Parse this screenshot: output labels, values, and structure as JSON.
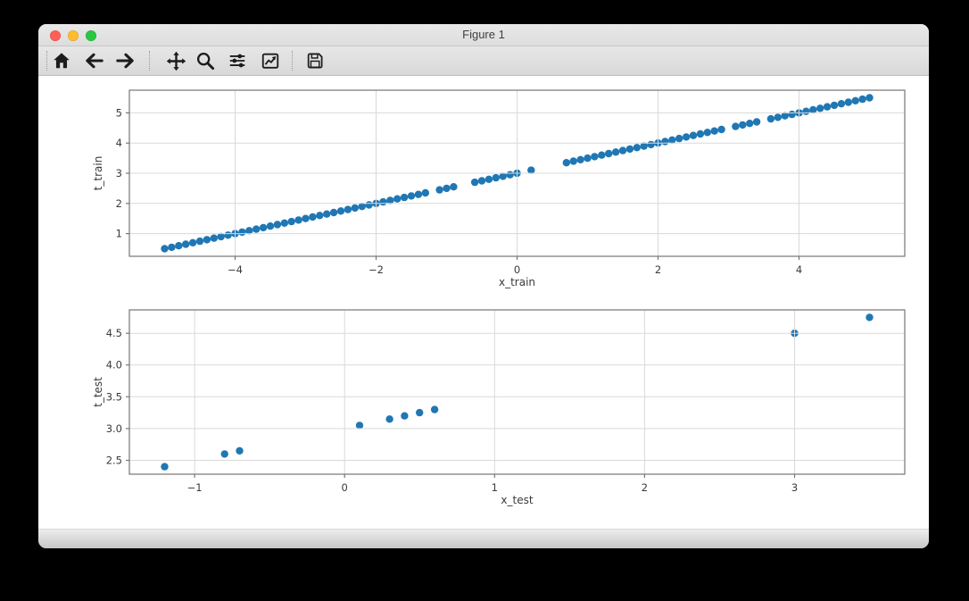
{
  "window": {
    "title": "Figure 1"
  },
  "toolbar": {
    "buttons": [
      {
        "id": "home",
        "icon": "home-icon"
      },
      {
        "id": "back",
        "icon": "back-arrow-icon"
      },
      {
        "id": "forward",
        "icon": "forward-arrow-icon"
      },
      {
        "id": "pan",
        "icon": "pan-move-icon"
      },
      {
        "id": "zoom",
        "icon": "zoom-magnifier-icon"
      },
      {
        "id": "configure-subplots",
        "icon": "sliders-icon"
      },
      {
        "id": "edit-axes",
        "icon": "line-chart-icon"
      },
      {
        "id": "save",
        "icon": "save-floppy-icon"
      }
    ]
  },
  "colors": {
    "marker": "#1f77b4",
    "grid": "#d9d9d9",
    "spine": "#767676",
    "text": "#3a3a3a",
    "traffic_close": "#ff5f57",
    "traffic_minimize": "#febc2e",
    "traffic_zoom": "#28c840"
  },
  "chart_data": [
    {
      "type": "scatter",
      "title": "",
      "xlabel": "x_train",
      "ylabel": "t_train",
      "x": [
        -5.0,
        -4.9,
        -4.8,
        -4.7,
        -4.6,
        -4.5,
        -4.4,
        -4.3,
        -4.2,
        -4.1,
        -4.0,
        -3.9,
        -3.8,
        -3.7,
        -3.6,
        -3.5,
        -3.4,
        -3.3,
        -3.2,
        -3.1,
        -3.0,
        -2.9,
        -2.8,
        -2.7,
        -2.6,
        -2.5,
        -2.4,
        -2.3,
        -2.2,
        -2.1,
        -2.0,
        -1.9,
        -1.8,
        -1.7,
        -1.6,
        -1.5,
        -1.4,
        -1.3,
        -1.1,
        -1.0,
        -0.9,
        -0.6,
        -0.5,
        -0.4,
        -0.3,
        -0.2,
        -0.1,
        0.0,
        0.2,
        0.7,
        0.8,
        0.9,
        1.0,
        1.1,
        1.2,
        1.3,
        1.4,
        1.5,
        1.6,
        1.7,
        1.8,
        1.9,
        2.0,
        2.1,
        2.2,
        2.3,
        2.4,
        2.5,
        2.6,
        2.7,
        2.8,
        2.9,
        3.1,
        3.2,
        3.3,
        3.4,
        3.6,
        3.7,
        3.8,
        3.9,
        4.0,
        4.1,
        4.2,
        4.3,
        4.4,
        4.5,
        4.6,
        4.7,
        4.8,
        4.9,
        5.0
      ],
      "y": [
        0.5,
        0.55,
        0.6,
        0.65,
        0.7,
        0.75,
        0.8,
        0.85,
        0.9,
        0.95,
        1.0,
        1.05,
        1.1,
        1.15,
        1.2,
        1.25,
        1.3,
        1.35,
        1.4,
        1.45,
        1.5,
        1.55,
        1.6,
        1.65,
        1.7,
        1.75,
        1.8,
        1.85,
        1.9,
        1.95,
        2.0,
        2.05,
        2.1,
        2.15,
        2.2,
        2.25,
        2.3,
        2.35,
        2.45,
        2.5,
        2.55,
        2.7,
        2.75,
        2.8,
        2.85,
        2.9,
        2.95,
        3.0,
        3.1,
        3.35,
        3.4,
        3.45,
        3.5,
        3.55,
        3.6,
        3.65,
        3.7,
        3.75,
        3.8,
        3.85,
        3.9,
        3.95,
        4.0,
        4.05,
        4.1,
        4.15,
        4.2,
        4.25,
        4.3,
        4.35,
        4.4,
        4.45,
        4.55,
        4.6,
        4.65,
        4.7,
        4.8,
        4.85,
        4.9,
        4.95,
        5.0,
        5.05,
        5.1,
        5.15,
        5.2,
        5.25,
        5.3,
        5.35,
        5.4,
        5.45,
        5.5
      ],
      "xlim": [
        -5.5,
        5.5
      ],
      "ylim": [
        0.25,
        5.75
      ],
      "xticks": [
        -4,
        -2,
        0,
        2,
        4
      ],
      "xtick_labels": [
        "−4",
        "−2",
        "0",
        "2",
        "4"
      ],
      "yticks": [
        1,
        2,
        3,
        4,
        5
      ],
      "ytick_labels": [
        "1",
        "2",
        "3",
        "4",
        "5"
      ],
      "grid": true,
      "legend": null,
      "marker_color": "#1f77b4"
    },
    {
      "type": "scatter",
      "title": "",
      "xlabel": "x_test",
      "ylabel": "t_test",
      "x": [
        -1.2,
        -0.8,
        -0.7,
        0.1,
        0.3,
        0.4,
        0.5,
        0.6,
        3.0,
        3.5
      ],
      "y": [
        2.4,
        2.6,
        2.65,
        3.05,
        3.15,
        3.2,
        3.25,
        3.3,
        4.5,
        4.75
      ],
      "xlim": [
        -1.435,
        3.735
      ],
      "ylim": [
        2.2825,
        4.8675
      ],
      "xticks": [
        -1,
        0,
        1,
        2,
        3
      ],
      "xtick_labels": [
        "−1",
        "0",
        "1",
        "2",
        "3"
      ],
      "yticks": [
        2.5,
        3.0,
        3.5,
        4.0,
        4.5
      ],
      "ytick_labels": [
        "2.5",
        "3.0",
        "3.5",
        "4.0",
        "4.5"
      ],
      "grid": true,
      "legend": null,
      "marker_color": "#1f77b4"
    }
  ]
}
